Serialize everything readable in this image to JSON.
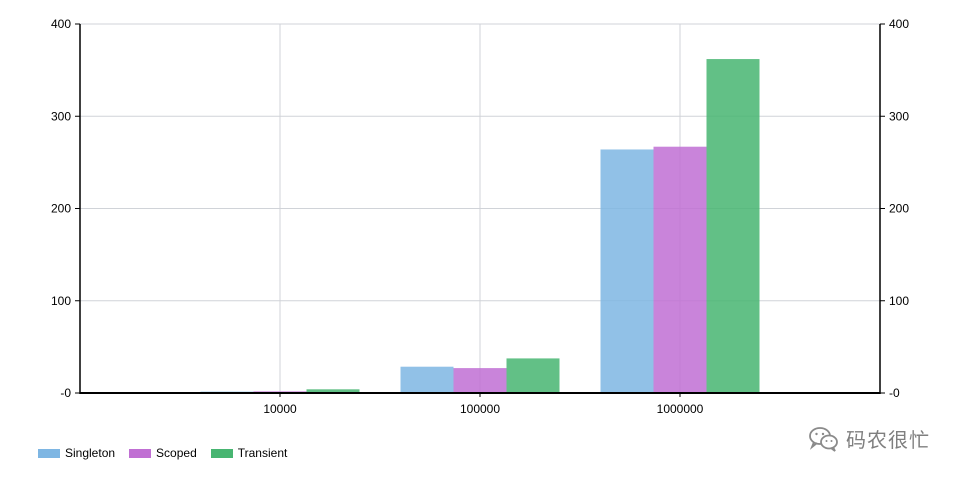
{
  "chart_data": {
    "type": "bar",
    "categories": [
      "10000",
      "100000",
      "1000000"
    ],
    "series": [
      {
        "name": "Singleton",
        "values": [
          1.5,
          28.5,
          264
        ],
        "color": "#7eb6e3"
      },
      {
        "name": "Scoped",
        "values": [
          1.8,
          27,
          267
        ],
        "color": "#c06fd3"
      },
      {
        "name": "Transient",
        "values": [
          4,
          37.5,
          362
        ],
        "color": "#47b571"
      }
    ],
    "ylim": [
      0,
      400
    ],
    "yticks": [
      0,
      100,
      200,
      300,
      400
    ],
    "ytick_labels": [
      "-0",
      "100",
      "200",
      "300",
      "400"
    ],
    "grid": true,
    "secondary_axis": true,
    "legend_position": "bottom-left",
    "title": "",
    "xlabel": "",
    "ylabel": ""
  },
  "watermark": {
    "text": "码农很忙",
    "icon": "wechat-icon",
    "color": "#7f7f7f"
  }
}
